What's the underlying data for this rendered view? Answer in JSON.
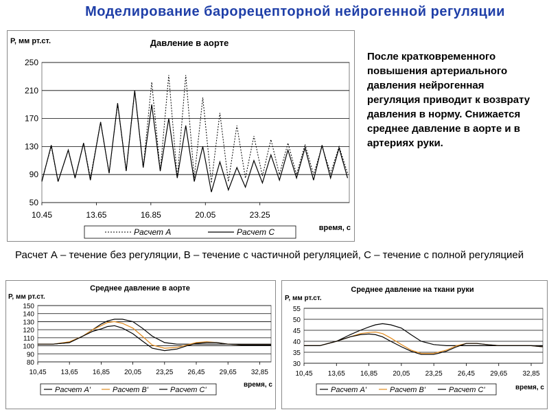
{
  "slide": {
    "title": "Моделирование  барорецепторной  нейрогенной  регуляции",
    "note": "После кратковременного повышения артериального давления нейрогенная регуляция приводит к возврату давления в норму. Снижается  среднее давление в аорте и в артериях руки.",
    "legend_text": "Расчет А – течение без регуляции,  В – течение с частичной регуляцией, С – течение с полной регуляцией"
  },
  "colors": {
    "title": "#1f3fa8",
    "calc_a": "#000000",
    "calc_b": "#e08a1e",
    "calc_c": "#000000",
    "grid": "#000000"
  },
  "chart_data": [
    {
      "type": "line",
      "title": "Давление в аорте",
      "ylabel": "P, мм рт.ст.",
      "xlabel": "время, с",
      "ylim": [
        50,
        250
      ],
      "yticks": [
        "250",
        "210",
        "170",
        "130",
        "90",
        "50"
      ],
      "xtick_labels": [
        "10.45",
        "13.65",
        "16.85",
        "20.05",
        "23.25"
      ],
      "xlim": [
        10.45,
        28.5
      ],
      "grid": true,
      "legend_position": "bottom",
      "series": [
        {
          "name": "Расчет А",
          "style": "dotted",
          "x": [
            10.45,
            11.0,
            11.4,
            12.0,
            12.4,
            12.9,
            13.3,
            13.9,
            14.4,
            14.9,
            15.4,
            15.9,
            16.4,
            16.9,
            17.4,
            17.9,
            18.4,
            18.9,
            19.4,
            19.9,
            20.4,
            20.9,
            21.4,
            21.9,
            22.4,
            22.9,
            23.4,
            23.9,
            24.4,
            24.9,
            25.4,
            25.9,
            26.4,
            26.9,
            27.4,
            27.9,
            28.4
          ],
          "y": [
            82,
            130,
            80,
            125,
            85,
            135,
            85,
            165,
            92,
            190,
            95,
            210,
            100,
            222,
            95,
            232,
            85,
            232,
            85,
            200,
            78,
            178,
            80,
            160,
            85,
            145,
            88,
            140,
            90,
            135,
            90,
            133,
            90,
            130,
            92,
            130,
            92
          ]
        },
        {
          "name": "Расчет С",
          "style": "solid",
          "x": [
            10.45,
            11.0,
            11.4,
            12.0,
            12.4,
            12.9,
            13.3,
            13.9,
            14.4,
            14.9,
            15.4,
            15.9,
            16.4,
            16.9,
            17.4,
            17.9,
            18.4,
            18.9,
            19.4,
            19.9,
            20.4,
            20.9,
            21.4,
            21.9,
            22.4,
            22.9,
            23.4,
            23.9,
            24.4,
            24.9,
            25.4,
            25.9,
            26.4,
            26.9,
            27.4,
            27.9,
            28.4
          ],
          "y": [
            80,
            132,
            80,
            125,
            85,
            135,
            82,
            165,
            92,
            192,
            95,
            210,
            100,
            190,
            95,
            170,
            85,
            160,
            80,
            130,
            65,
            108,
            68,
            100,
            72,
            110,
            78,
            118,
            82,
            125,
            85,
            128,
            82,
            132,
            85,
            128,
            85
          ]
        }
      ]
    },
    {
      "type": "line",
      "title": "Среднее давление в аорте",
      "ylabel": "P, мм рт.ст.",
      "xlabel": "время, с",
      "ylim": [
        80,
        150
      ],
      "yticks": [
        "150",
        "140",
        "130",
        "120",
        "110",
        "100",
        "90",
        "80"
      ],
      "xtick_labels": [
        "10,45",
        "13,65",
        "16,85",
        "20,05",
        "23,25",
        "26,45",
        "29,65",
        "32,85"
      ],
      "xticks": [
        10.45,
        13.65,
        16.85,
        20.05,
        23.25,
        26.45,
        29.65,
        32.85
      ],
      "xlim": [
        10.45,
        34.0
      ],
      "grid": true,
      "legend_position": "bottom",
      "series": [
        {
          "name": "Расчет A'",
          "x": [
            10.45,
            12.0,
            13.65,
            15.0,
            16.0,
            16.85,
            17.5,
            18.2,
            19.0,
            20.05,
            21.0,
            22.0,
            23.25,
            24.5,
            25.5,
            26.45,
            27.5,
            28.5,
            29.65,
            31.0,
            32.0,
            32.85,
            34.0
          ],
          "y": [
            102,
            102,
            104,
            112,
            120,
            127,
            131,
            133,
            133,
            130,
            122,
            112,
            104,
            102,
            102,
            102,
            102,
            102,
            102,
            102,
            102,
            102,
            102
          ]
        },
        {
          "name": "Расчет B'",
          "x": [
            10.45,
            12.0,
            13.65,
            15.0,
            16.0,
            16.85,
            17.5,
            18.2,
            19.0,
            20.05,
            21.0,
            22.0,
            23.25,
            24.5,
            25.5,
            26.45,
            27.5,
            28.5,
            29.65,
            31.0,
            32.0,
            32.85,
            34.0
          ],
          "y": [
            102,
            102,
            105,
            112,
            120,
            125,
            129,
            130,
            128,
            122,
            112,
            101,
            97,
            98,
            101,
            104,
            105,
            104,
            102,
            101,
            101,
            101,
            101
          ]
        },
        {
          "name": "Расчет C'",
          "x": [
            10.45,
            12.0,
            13.65,
            15.0,
            16.0,
            16.85,
            17.5,
            18.2,
            19.0,
            20.05,
            21.0,
            22.0,
            23.25,
            24.5,
            25.5,
            26.45,
            27.5,
            28.5,
            29.65,
            31.0,
            32.0,
            32.85,
            34.0
          ],
          "y": [
            102,
            102,
            104,
            112,
            118,
            121,
            124,
            125,
            122,
            115,
            106,
            97,
            94,
            96,
            100,
            103,
            104,
            104,
            102,
            101,
            101,
            101,
            101
          ]
        }
      ]
    },
    {
      "type": "line",
      "title": "Среднее давление на ткани руки",
      "ylabel": "P, мм рт.ст.",
      "xlabel": "время, с",
      "ylim": [
        30,
        55
      ],
      "yticks": [
        "55",
        "50",
        "45",
        "40",
        "35",
        "30"
      ],
      "xtick_labels": [
        "10,45",
        "13,65",
        "16,85",
        "20,05",
        "23,25",
        "26,45",
        "29,65",
        "32,85"
      ],
      "xticks": [
        10.45,
        13.65,
        16.85,
        20.05,
        23.25,
        26.45,
        29.65,
        32.85
      ],
      "xlim": [
        10.45,
        34.0
      ],
      "grid": true,
      "legend_position": "bottom",
      "series": [
        {
          "name": "Расчет A'",
          "x": [
            10.45,
            12.0,
            13.65,
            15.0,
            16.0,
            16.85,
            17.5,
            18.2,
            19.0,
            20.05,
            21.0,
            22.0,
            23.25,
            24.5,
            25.5,
            26.45,
            27.5,
            28.5,
            29.65,
            31.0,
            32.0,
            32.85,
            34.0
          ],
          "y": [
            38,
            38,
            40,
            43,
            45,
            46.5,
            47.5,
            48,
            47.5,
            46,
            43,
            40,
            38.5,
            38,
            38,
            38,
            38,
            38,
            38,
            38,
            38,
            38,
            38
          ]
        },
        {
          "name": "Расчет B'",
          "x": [
            10.45,
            12.0,
            13.65,
            15.0,
            16.0,
            16.85,
            17.5,
            18.2,
            19.0,
            20.05,
            21.0,
            22.0,
            23.25,
            24.5,
            25.5,
            26.45,
            27.5,
            28.5,
            29.65,
            31.0,
            32.0,
            32.85,
            34.0
          ],
          "y": [
            38,
            38,
            40,
            42,
            43.5,
            44,
            44.2,
            43.5,
            41.5,
            38.5,
            36,
            34.5,
            34.5,
            36,
            38,
            39,
            39,
            38.5,
            38,
            38,
            38,
            38,
            37.5
          ]
        },
        {
          "name": "Расчет C'",
          "x": [
            10.45,
            12.0,
            13.65,
            15.0,
            16.0,
            16.85,
            17.5,
            18.2,
            19.0,
            20.05,
            21.0,
            22.0,
            23.25,
            24.5,
            25.5,
            26.45,
            27.5,
            28.5,
            29.65,
            31.0,
            32.0,
            32.85,
            34.0
          ],
          "y": [
            38,
            38,
            40,
            42,
            43,
            43.3,
            43,
            42,
            40,
            37.5,
            35.5,
            34,
            34,
            35.5,
            37.5,
            39,
            39,
            38.5,
            38,
            38,
            38,
            38,
            37.5
          ]
        }
      ]
    }
  ]
}
